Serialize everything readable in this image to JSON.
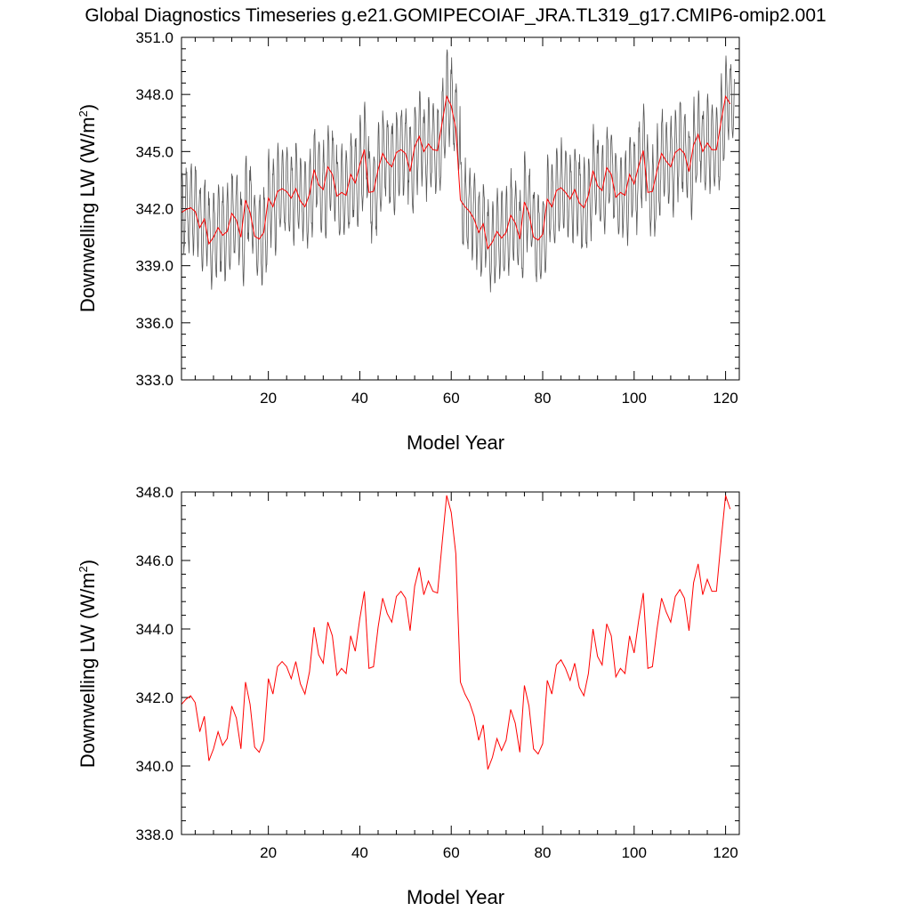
{
  "figure": {
    "title": "Global Diagnostics Timeseries g.e21.GOMIPECOIAF_JRA.TL319_g17.CMIP6-omip2.001"
  },
  "colors": {
    "monthly": "#555555",
    "annual": "#ff0000",
    "axes": "#000000"
  },
  "chart_data": [
    {
      "type": "line",
      "xlabel": "Model Year",
      "ylabel": "Downwelling LW (W/m",
      "ylabel_sup": "2",
      "ylabel_end": ")",
      "xlim": [
        1,
        123
      ],
      "ylim": [
        333.0,
        351.0
      ],
      "xticks": [
        20,
        40,
        60,
        80,
        100,
        120
      ],
      "yticks": [
        333.0,
        336.0,
        339.0,
        342.0,
        345.0,
        348.0,
        351.0
      ],
      "ytick_labels": [
        "333.0",
        "336.0",
        "339.0",
        "342.0",
        "345.0",
        "348.0",
        "351.0"
      ],
      "series": [
        {
          "role": "monthly",
          "color": "#555555",
          "months_per_year": 12,
          "seasonal_amplitude": 2.2,
          "noise": 0.5
        },
        {
          "role": "annual",
          "color": "#ff0000",
          "source": "annual_mean"
        }
      ]
    },
    {
      "type": "line",
      "xlabel": "Model Year",
      "ylabel": "Downwelling LW (W/m",
      "ylabel_sup": "2",
      "ylabel_end": ")",
      "xlim": [
        1,
        123
      ],
      "ylim": [
        338.0,
        348.0
      ],
      "xticks": [
        20,
        40,
        60,
        80,
        100,
        120
      ],
      "yticks": [
        338.0,
        340.0,
        342.0,
        344.0,
        346.0,
        348.0
      ],
      "ytick_labels": [
        "338.0",
        "340.0",
        "342.0",
        "344.0",
        "346.0",
        "348.0"
      ],
      "series": [
        {
          "role": "annual",
          "color": "#ff0000",
          "source": "annual_mean"
        }
      ]
    }
  ],
  "annual_mean": {
    "x_start": 1,
    "values": [
      341.8,
      341.95,
      342.05,
      341.85,
      341.0,
      341.45,
      340.15,
      340.5,
      341.0,
      340.6,
      340.8,
      341.75,
      341.4,
      340.5,
      342.45,
      341.8,
      340.55,
      340.4,
      340.75,
      342.55,
      342.1,
      342.9,
      343.05,
      342.9,
      342.55,
      343.05,
      342.4,
      342.1,
      342.75,
      344.05,
      343.25,
      343.0,
      344.2,
      343.8,
      342.65,
      342.85,
      342.7,
      343.8,
      343.35,
      344.3,
      345.1,
      342.85,
      342.9,
      344.05,
      344.9,
      344.45,
      344.2,
      344.95,
      345.1,
      344.9,
      343.95,
      345.25,
      345.8,
      345.0,
      345.4,
      345.1,
      345.05,
      346.5,
      347.9,
      347.4,
      346.2,
      342.45,
      342.1,
      341.85,
      341.45,
      340.75,
      341.2,
      339.9,
      340.25,
      340.8,
      340.45,
      340.75,
      341.65,
      341.25,
      340.4,
      342.35,
      341.75,
      340.5,
      340.35,
      340.65,
      342.5,
      342.1,
      342.95,
      343.1,
      342.85,
      342.5,
      343.0,
      342.3,
      342.05,
      342.7,
      344.0,
      343.2,
      342.95,
      344.15,
      343.8,
      342.6,
      342.85,
      342.7,
      343.8,
      343.3,
      344.25,
      345.05,
      342.85,
      342.9,
      344.0,
      344.9,
      344.5,
      344.2,
      344.95,
      345.15,
      344.9,
      343.95,
      345.35,
      345.9,
      345.0,
      345.45,
      345.1,
      345.1,
      346.55,
      347.9,
      347.5
    ]
  }
}
